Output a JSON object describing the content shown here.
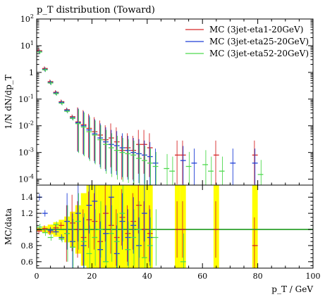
{
  "chart_data": [
    {
      "type": "line",
      "title": "p_T distribution (Toward)",
      "xlabel": "p_T / GeV",
      "ylabel": "1/N dN/dp_T",
      "xlim": [
        0,
        100
      ],
      "ylim": [
        6e-05,
        100
      ],
      "yscale": "log",
      "grid": false,
      "legend_placement": "top-right",
      "x_ticks": [
        "0",
        "20",
        "40",
        "60",
        "80",
        "100"
      ],
      "y_ticks": [
        "10^-4",
        "10^-3",
        "10^-2",
        "10^-1",
        "1",
        "10^1",
        "10^2"
      ],
      "series": [
        {
          "name": "MC (3jet-eta1-20GeV)",
          "color": "#d62728",
          "x": [
            1,
            3,
            5,
            7,
            9,
            11,
            13,
            15,
            17,
            19,
            21,
            23,
            25,
            27,
            29,
            31,
            33,
            35,
            37,
            39,
            41,
            51,
            53,
            65,
            79
          ],
          "y": [
            6.5,
            1.4,
            0.45,
            0.18,
            0.08,
            0.04,
            0.022,
            0.014,
            0.011,
            0.008,
            0.006,
            0.0045,
            0.003,
            0.0035,
            0.0025,
            0.0012,
            0.0015,
            0.0012,
            0.002,
            0.002,
            0.0015,
            0.0008,
            0.0008,
            0.0008,
            0.0008
          ]
        },
        {
          "name": "MC (3jet-eta25-20GeV)",
          "color": "#1f3fd6",
          "x": [
            1,
            3,
            5,
            7,
            9,
            11,
            13,
            15,
            17,
            19,
            21,
            23,
            25,
            27,
            29,
            31,
            33,
            35,
            37,
            39,
            41,
            43,
            53,
            57,
            71,
            79
          ],
          "y": [
            6.0,
            1.3,
            0.42,
            0.17,
            0.075,
            0.038,
            0.02,
            0.013,
            0.01,
            0.007,
            0.005,
            0.0035,
            0.0025,
            0.002,
            0.0018,
            0.0015,
            0.0012,
            0.001,
            0.0009,
            0.0008,
            0.0007,
            0.0004,
            0.0005,
            0.0004,
            0.0004,
            0.0004
          ]
        },
        {
          "name": "MC (3jet-eta52-20GeV)",
          "color": "#4ed94e",
          "x": [
            1,
            3,
            5,
            7,
            9,
            11,
            13,
            15,
            17,
            19,
            21,
            23,
            25,
            27,
            29,
            31,
            33,
            35,
            37,
            39,
            41,
            43,
            47,
            49,
            55,
            61,
            63,
            67,
            81
          ],
          "y": [
            5.8,
            1.25,
            0.4,
            0.16,
            0.07,
            0.035,
            0.019,
            0.012,
            0.009,
            0.006,
            0.0045,
            0.003,
            0.002,
            0.0015,
            0.0012,
            0.001,
            0.0009,
            0.0008,
            0.0006,
            0.0005,
            0.0004,
            0.0003,
            0.00025,
            0.0002,
            0.0003,
            0.00035,
            0.0002,
            0.0002,
            0.00015
          ]
        }
      ]
    },
    {
      "type": "line",
      "ylabel": "MC/data",
      "xlabel": "p_T / GeV",
      "xlim": [
        0,
        100
      ],
      "ylim": [
        0.52,
        1.55
      ],
      "y_ticks": [
        "0.6",
        "0.8",
        "1",
        "1.2",
        "1.4"
      ],
      "x_ticks": [
        "0",
        "20",
        "40",
        "60",
        "80",
        "100"
      ],
      "reference_line": 1,
      "band_color": "#ffff00",
      "uncertainty_band": {
        "x": [
          1,
          3,
          5,
          7,
          9,
          11,
          13,
          15,
          17,
          19,
          21,
          23,
          25,
          27,
          29,
          31,
          33,
          35,
          37,
          39,
          41,
          51,
          53,
          65,
          79
        ],
        "half_width": [
          0.02,
          0.04,
          0.06,
          0.09,
          0.12,
          0.16,
          0.22,
          0.3,
          0.45,
          0.6,
          0.6,
          0.6,
          0.6,
          0.6,
          0.6,
          0.6,
          0.6,
          0.6,
          0.6,
          0.6,
          0.6,
          0.6,
          0.6,
          0.6,
          0.6
        ]
      },
      "series": [
        {
          "name": "MC (3jet-eta1-20GeV)",
          "color": "#d62728",
          "x": [
            1,
            3,
            5,
            7,
            9,
            11,
            13,
            15,
            17,
            19,
            21,
            23,
            25,
            27,
            29,
            31,
            33,
            35,
            37,
            39,
            41,
            51,
            53,
            65,
            79
          ],
          "y": [
            0.98,
            1.01,
            0.97,
            1.02,
            1.05,
            0.95,
            1.08,
            1.0,
            0.9,
            1.12,
            1.1,
            0.85,
            1.2,
            1.05,
            0.9,
            1.15,
            0.95,
            1.1,
            1.3,
            1.0,
            0.95,
            1.0,
            1.0,
            1.0,
            0.8
          ]
        },
        {
          "name": "MC (3jet-eta25-20GeV)",
          "color": "#1f3fd6",
          "x": [
            1,
            3,
            5,
            7,
            9,
            11,
            13,
            15,
            17,
            19,
            21,
            23,
            25,
            27,
            29,
            31,
            33,
            35,
            37,
            39,
            41
          ],
          "y": [
            1.4,
            1.2,
            0.99,
            0.97,
            0.9,
            1.1,
            0.85,
            1.2,
            0.8,
            1.3,
            1.35,
            0.75,
            0.95,
            1.4,
            0.7,
            1.1,
            0.9,
            1.05,
            0.8,
            1.2,
            0.9
          ]
        },
        {
          "name": "MC (3jet-eta52-20GeV)",
          "color": "#4ed94e",
          "x": [
            1,
            3,
            5,
            7,
            9,
            11,
            13,
            15,
            17,
            19,
            21,
            23,
            25,
            27,
            29,
            31,
            33,
            35,
            37,
            39,
            41,
            43,
            53
          ],
          "y": [
            1.03,
            0.96,
            0.9,
            1.06,
            0.88,
            0.95,
            0.78,
            1.1,
            0.85,
            0.7,
            0.9,
            1.0,
            0.6,
            0.95,
            0.85,
            1.2,
            0.75,
            0.9,
            1.0,
            0.65,
            0.8,
            0.9,
            0.6
          ]
        }
      ]
    }
  ]
}
